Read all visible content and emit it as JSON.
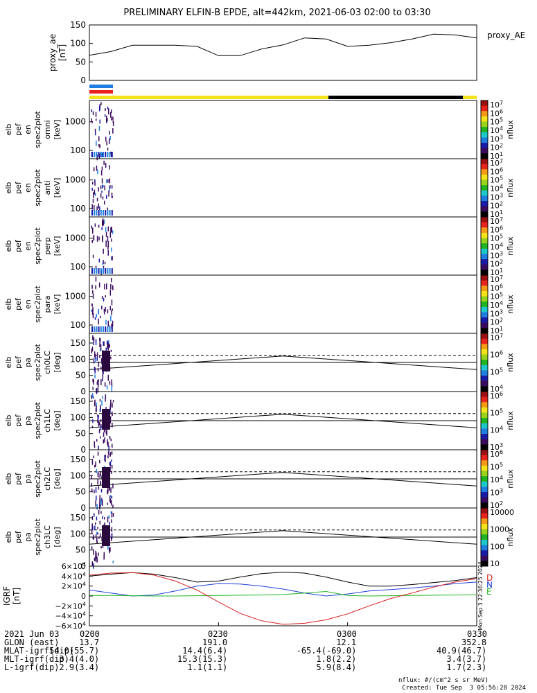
{
  "title": "PRELIMINARY ELFIN-B EPDE, alt=442km, 2021-06-03 02:00 to 03:30",
  "colors": {
    "science_zone_blue": "#1e7fe0",
    "science_zone_red": "#e8231d",
    "sunlight_yellow": "#f4e21a",
    "shadow_black": "#000000",
    "gsm_x": "#000000",
    "gsm_y": "#1f3fd6",
    "gsm_z": "#d61f1f",
    "gsm_total": "#22b322"
  },
  "chart_data": [
    {
      "type": "line",
      "name": "proxy_ae",
      "ylabel": "proxy_ae\n[nT]",
      "legend": "proxy_AE",
      "ylim": [
        0,
        150
      ],
      "yticks": [
        "150",
        "100",
        "50",
        "0"
      ],
      "x_minutes": [
        0,
        5,
        10,
        15,
        20,
        25,
        30,
        35,
        40,
        45,
        50,
        55,
        60,
        65,
        70,
        75,
        80,
        85,
        90
      ],
      "values": [
        68,
        78,
        95,
        95,
        95,
        92,
        67,
        67,
        85,
        96,
        115,
        112,
        92,
        95,
        102,
        112,
        125,
        123,
        115
      ]
    },
    {
      "type": "heatmap",
      "name": "elb_pef_en_spec2plot_omni",
      "ylabel": [
        "elb",
        "pef",
        "en",
        "spec2plot",
        "omni",
        "[keV]"
      ],
      "yticks": [
        "1000",
        "100"
      ],
      "colorbar_label": "nflux",
      "colorbar_ticks": [
        "10^7",
        "10^6",
        "10^5",
        "10^4",
        "10^3",
        "10^2",
        "10^1"
      ]
    },
    {
      "type": "heatmap",
      "name": "elb_pef_en_spec2plot_anti",
      "ylabel": [
        "elb",
        "pef",
        "en",
        "spec2plot",
        "anti",
        "[keV]"
      ],
      "yticks": [
        "1000",
        "100"
      ],
      "colorbar_label": "nflux",
      "colorbar_ticks": [
        "10^7",
        "10^6",
        "10^5",
        "10^4",
        "10^3",
        "10^2",
        "10^1"
      ]
    },
    {
      "type": "heatmap",
      "name": "elb_pef_en_spec2plot_perp",
      "ylabel": [
        "elb",
        "pef",
        "en",
        "spec2plot",
        "perp",
        "[keV]"
      ],
      "yticks": [
        "1000",
        "100"
      ],
      "colorbar_label": "nflux",
      "colorbar_ticks": [
        "10^7",
        "10^6",
        "10^5",
        "10^4",
        "10^3",
        "10^2",
        "10^1"
      ]
    },
    {
      "type": "heatmap",
      "name": "elb_pef_en_spec2plot_para",
      "ylabel": [
        "elb",
        "pef",
        "en",
        "spec2plot",
        "para",
        "[keV]"
      ],
      "yticks": [
        "1000",
        "100"
      ],
      "colorbar_label": "nflux",
      "colorbar_ticks": [
        "10^7",
        "10^6",
        "10^5",
        "10^4",
        "10^3",
        "10^2",
        "10^1"
      ]
    },
    {
      "type": "heatmap",
      "name": "elb_pef_pa_spec2plot_ch0LC",
      "ylabel": [
        "elb",
        "pef",
        "pa",
        "spec2plot",
        "ch0LC",
        "[deg]"
      ],
      "yticks": [
        "150",
        "100",
        "50",
        "0"
      ],
      "ylim": [
        0,
        180
      ],
      "colorbar_label": "nflux",
      "colorbar_ticks": [
        "10^7",
        "10^6",
        "10^5",
        "10^4"
      ],
      "loss_cone": {
        "x_minutes": [
          0,
          45,
          90
        ],
        "values": [
          68,
          110,
          68
        ]
      },
      "anti_loss_cone": 112
    },
    {
      "type": "heatmap",
      "name": "elb_pef_pa_spec2plot_ch1LC",
      "ylabel": [
        "elb",
        "pef",
        "pa",
        "spec2plot",
        "ch1LC",
        "[deg]"
      ],
      "yticks": [
        "150",
        "100",
        "50",
        "0"
      ],
      "ylim": [
        0,
        180
      ],
      "colorbar_label": "nflux",
      "colorbar_ticks": [
        "10^6",
        "10^5",
        "10^4",
        "10^3"
      ],
      "loss_cone": {
        "x_minutes": [
          0,
          45,
          90
        ],
        "values": [
          68,
          110,
          68
        ]
      },
      "anti_loss_cone": 112
    },
    {
      "type": "heatmap",
      "name": "elb_pef_pa_spec2plot_ch2LC",
      "ylabel": [
        "elb",
        "pef",
        "pa",
        "spec2plot",
        "ch2LC",
        "[deg]"
      ],
      "yticks": [
        "150",
        "100",
        "50",
        "0"
      ],
      "ylim": [
        0,
        180
      ],
      "colorbar_label": "nflux",
      "colorbar_ticks": [
        "10^6",
        "10^5",
        "10^4",
        "10^3",
        "10^2"
      ],
      "loss_cone": {
        "x_minutes": [
          0,
          45,
          90
        ],
        "values": [
          68,
          110,
          68
        ]
      },
      "anti_loss_cone": 112
    },
    {
      "type": "heatmap",
      "name": "elb_pef_pa_spec2plot_ch3LC",
      "ylabel": [
        "elb",
        "pef",
        "pa",
        "spec2plot",
        "ch3LC",
        "[deg]"
      ],
      "yticks": [
        "150",
        "100",
        "50",
        "0"
      ],
      "ylim": [
        0,
        180
      ],
      "colorbar_label": "nflux",
      "colorbar_ticks": [
        "10000",
        "1000",
        "100",
        "10"
      ],
      "loss_cone": {
        "x_minutes": [
          0,
          45,
          90
        ],
        "values": [
          68,
          110,
          68
        ]
      },
      "anti_loss_cone": 112
    },
    {
      "type": "line",
      "name": "IGRF",
      "ylabel": [
        "IGRF",
        "[nT]"
      ],
      "ylim": [
        -60000,
        60000
      ],
      "yticks": [
        "6×10^4",
        "4×10^4",
        "2×10^4",
        "0",
        "−2×10^4",
        "−4×10^4",
        "−6×10^4"
      ],
      "legend": [
        "D",
        "N",
        "E"
      ],
      "side_label": "Mon Sep  3 22:36:25 2024",
      "x_minutes": [
        0,
        5,
        10,
        15,
        20,
        25,
        30,
        35,
        40,
        45,
        50,
        55,
        60,
        65,
        70,
        75,
        80,
        85,
        90
      ],
      "series": [
        {
          "name": "D",
          "values": [
            40000,
            44000,
            47000,
            44000,
            37000,
            28000,
            30000,
            38000,
            45000,
            48000,
            46000,
            38000,
            28000,
            20000,
            20000,
            23000,
            27000,
            31000,
            37000
          ]
        },
        {
          "name": "N",
          "values": [
            12000,
            6000,
            0,
            2000,
            10000,
            20000,
            25000,
            24000,
            20000,
            14000,
            6000,
            0,
            4000,
            10000,
            13000,
            16000,
            20000,
            25000,
            28000
          ]
        },
        {
          "name": "E",
          "values": [
            1000,
            1000,
            500,
            0,
            0,
            500,
            1000,
            1500,
            2000,
            3000,
            6000,
            9000,
            1000,
            0,
            500,
            1000,
            1500,
            2000,
            2500
          ]
        },
        {
          "name": "red",
          "values": [
            42000,
            46000,
            47000,
            42000,
            30000,
            12000,
            -12000,
            -35000,
            -50000,
            -57000,
            -55000,
            -48000,
            -36000,
            -20000,
            -5000,
            6000,
            18000,
            28000,
            35000
          ]
        }
      ]
    }
  ],
  "xaxis": {
    "ticks": [
      "0200",
      "0230",
      "0300",
      "0330"
    ],
    "minutes": [
      0,
      30,
      60,
      90
    ]
  },
  "footer": {
    "date": "2021 Jun 03",
    "rows": [
      {
        "label": "GLON (east)",
        "values": [
          "13.7",
          "191.0",
          "12.1",
          "352.8"
        ]
      },
      {
        "label": "MLAT-igrf(dip)",
        "values": [
          "54.0(55.7)",
          "14.4(6.4)",
          "-65.4(-69.0)",
          "40.9(46.7)"
        ]
      },
      {
        "label": "MLT-igrf(dip)",
        "values": [
          "3.4(4.0)",
          "15.3(15.3)",
          "1.8(2.2)",
          "3.4(3.7)"
        ]
      },
      {
        "label": "L-igrf(dip)",
        "values": [
          "2.9(3.4)",
          "1.1(1.1)",
          "5.9(8.4)",
          "1.7(2.3)"
        ]
      }
    ],
    "units_note": "nflux: #/(cm^2 s sr MeV)",
    "created": "Created: Tue Sep  3 05:56:28 2024"
  }
}
